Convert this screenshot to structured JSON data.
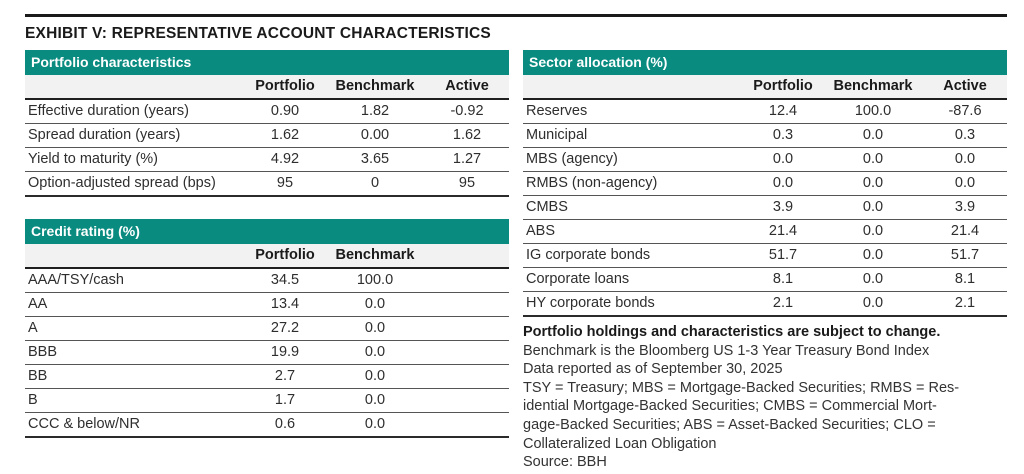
{
  "page": {
    "title": "EXHIBIT V: REPRESENTATIVE ACCOUNT CHARACTERISTICS"
  },
  "colors": {
    "header_teal": "#098b80"
  },
  "tables": {
    "portfolio_characteristics": {
      "title": "Portfolio characteristics",
      "columns": [
        "Portfolio",
        "Benchmark",
        "Active"
      ],
      "rows": [
        {
          "label": "Effective duration (years)",
          "values": [
            "0.90",
            "1.82",
            "-0.92"
          ]
        },
        {
          "label": "Spread duration (years)",
          "values": [
            "1.62",
            "0.00",
            "1.62"
          ]
        },
        {
          "label": "Yield to maturity (%)",
          "values": [
            "4.92",
            "3.65",
            "1.27"
          ]
        },
        {
          "label": "Option-adjusted spread (bps)",
          "values": [
            "95",
            "0",
            "95"
          ]
        }
      ]
    },
    "credit_rating": {
      "title": "Credit rating (%)",
      "columns": [
        "Portfolio",
        "Benchmark"
      ],
      "rows": [
        {
          "label": "AAA/TSY/cash",
          "values": [
            "34.5",
            "100.0"
          ]
        },
        {
          "label": "AA",
          "values": [
            "13.4",
            "0.0"
          ]
        },
        {
          "label": "A",
          "values": [
            "27.2",
            "0.0"
          ]
        },
        {
          "label": "BBB",
          "values": [
            "19.9",
            "0.0"
          ]
        },
        {
          "label": "BB",
          "values": [
            "2.7",
            "0.0"
          ]
        },
        {
          "label": "B",
          "values": [
            "1.7",
            "0.0"
          ]
        },
        {
          "label": "CCC & below/NR",
          "values": [
            "0.6",
            "0.0"
          ]
        }
      ]
    },
    "sector_allocation": {
      "title": "Sector allocation (%)",
      "columns": [
        "Portfolio",
        "Benchmark",
        "Active"
      ],
      "rows": [
        {
          "label": "Reserves",
          "values": [
            "12.4",
            "100.0",
            "-87.6"
          ]
        },
        {
          "label": "Municipal",
          "values": [
            "0.3",
            "0.0",
            "0.3"
          ]
        },
        {
          "label": "MBS (agency)",
          "values": [
            "0.0",
            "0.0",
            "0.0"
          ]
        },
        {
          "label": "RMBS (non-agency)",
          "values": [
            "0.0",
            "0.0",
            "0.0"
          ]
        },
        {
          "label": "CMBS",
          "values": [
            "3.9",
            "0.0",
            "3.9"
          ]
        },
        {
          "label": "ABS",
          "values": [
            "21.4",
            "0.0",
            "21.4"
          ]
        },
        {
          "label": "IG corporate bonds",
          "values": [
            "51.7",
            "0.0",
            "51.7"
          ]
        },
        {
          "label": "Corporate loans",
          "values": [
            "8.1",
            "0.0",
            "8.1"
          ]
        },
        {
          "label": "HY corporate bonds",
          "values": [
            "2.1",
            "0.0",
            "2.1"
          ]
        }
      ]
    }
  },
  "footnotes": {
    "bold_line": "Portfolio holdings and characteristics are subject to change.",
    "lines": [
      "Benchmark is the Bloomberg US 1-3 Year Treasury Bond Index",
      "Data reported as of September 30, 2025",
      "TSY = Treasury; MBS = Mortgage-Backed Securities; RMBS = Res-",
      "idential Mortgage-Backed Securities; CMBS = Commercial Mort-",
      "gage-Backed Securities; ABS = Asset-Backed Securities; CLO =",
      "Collateralized Loan Obligation",
      "Source: BBH"
    ]
  }
}
